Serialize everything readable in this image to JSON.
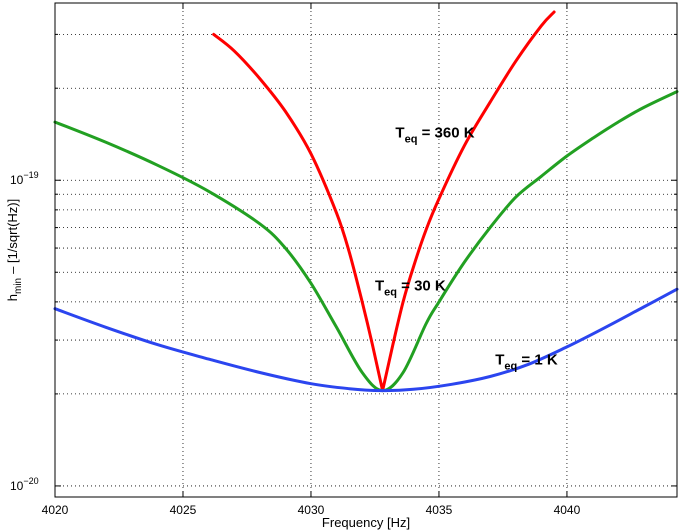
{
  "chart_data": {
    "type": "line",
    "title": "",
    "xlabel": "Frequency [Hz]",
    "ylabel": "h_min – [1/sqrt(Hz)]",
    "ylabel_main": "h",
    "ylabel_sub": "min",
    "ylabel_rest": "– [1/sqrt(Hz)]",
    "xlim": [
      4020,
      4044.3
    ],
    "ylim": [
      9.2e-21,
      3.8e-19
    ],
    "yscale": "log",
    "grid": true,
    "x_ticks": [
      4020,
      4025,
      4030,
      4035,
      4040
    ],
    "x_tick_labels": [
      "4020",
      "4025",
      "4030",
      "4035",
      "4040"
    ],
    "y_ticks": [
      1e-20,
      1e-19
    ],
    "y_tick_labels": [
      {
        "base": "10",
        "exp": "−20"
      },
      {
        "base": "10",
        "exp": "−19"
      }
    ],
    "series": [
      {
        "color": "#ff0000",
        "x": [
          4026.2,
          4027.0,
          4028.0,
          4029.0,
          4030.0,
          4031.0,
          4031.5,
          4032.0,
          4032.4,
          4032.8,
          4033.2,
          4033.6,
          4034.0,
          4034.5,
          4035.0,
          4036.0,
          4037.0,
          4038.0,
          4039.0,
          4039.5
        ],
        "y": [
          3e-19,
          2.65e-19,
          2.15e-19,
          1.68e-19,
          1.22e-19,
          7.8e-20,
          5.8e-20,
          4e-20,
          2.9e-20,
          2.05e-20,
          2.9e-20,
          4e-20,
          5.2e-20,
          6.9e-20,
          8.7e-20,
          1.3e-19,
          1.8e-19,
          2.45e-19,
          3.2e-19,
          3.55e-19
        ]
      },
      {
        "color": "#22a022",
        "x": [
          4020.0,
          4022.0,
          4024.0,
          4026.0,
          4028.0,
          4029.0,
          4030.0,
          4031.0,
          4032.0,
          4032.8,
          4033.6,
          4034.5,
          4035.0,
          4036.0,
          4037.0,
          4038.0,
          4039.0,
          4040.0,
          4041.0,
          4042.0,
          4043.0,
          4044.3
        ],
        "y": [
          1.55e-19,
          1.33e-19,
          1.12e-19,
          9.2e-20,
          7.2e-20,
          6e-20,
          4.6e-20,
          3.3e-20,
          2.35e-20,
          2.05e-20,
          2.35e-20,
          3.4e-20,
          4e-20,
          5.4e-20,
          7e-20,
          8.8e-20,
          1.03e-19,
          1.2e-19,
          1.37e-19,
          1.55e-19,
          1.73e-19,
          1.95e-19
        ]
      },
      {
        "color": "#2b45ef",
        "x": [
          4020.0,
          4022.0,
          4024.0,
          4026.0,
          4028.0,
          4030.0,
          4031.5,
          4032.8,
          4034.0,
          4035.5,
          4037.0,
          4038.5,
          4040.0,
          4041.5,
          4043.0,
          4044.3
        ],
        "y": [
          3.8e-20,
          3.3e-20,
          2.9e-20,
          2.6e-20,
          2.35e-20,
          2.16e-20,
          2.08e-20,
          2.05e-20,
          2.07e-20,
          2.15e-20,
          2.28e-20,
          2.5e-20,
          2.85e-20,
          3.3e-20,
          3.85e-20,
          4.4e-20
        ]
      }
    ],
    "annotations": [
      {
        "main": "T",
        "sub": "eq",
        "rest": " = 360 K",
        "x": 4033.3,
        "y": 1.38e-19
      },
      {
        "main": "T",
        "sub": "eq",
        "rest": " = 30 K",
        "x": 4032.5,
        "y": 4.35e-20
      },
      {
        "main": "T",
        "sub": "eq",
        "rest": " = 1 K",
        "x": 4037.2,
        "y": 2.5e-20
      }
    ]
  }
}
